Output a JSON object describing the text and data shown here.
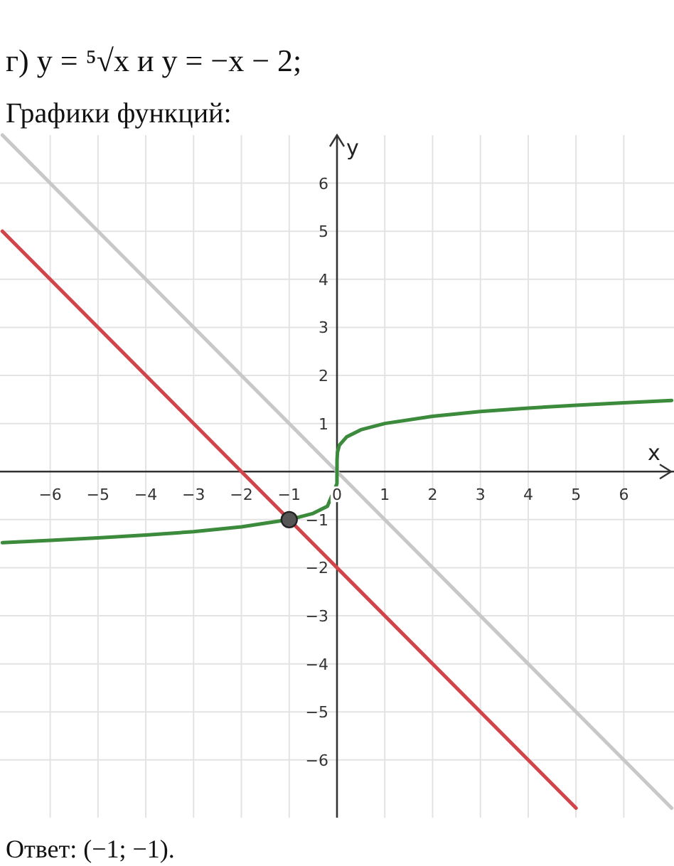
{
  "chart_data": {
    "type": "line",
    "title": "г) y = ⁵√x и y = −x − 2;",
    "subtitle": "Графики функций:",
    "xlabel": "x",
    "ylabel": "y",
    "annotations": [
      "Ответ: (−1; −1)."
    ],
    "xlim": [
      -7.05,
      7.05
    ],
    "ylim": [
      -7.2,
      7.0
    ],
    "xticks": [
      {
        "value": -6,
        "label": "−6"
      },
      {
        "value": -5,
        "label": "−5"
      },
      {
        "value": -4,
        "label": "−4"
      },
      {
        "value": -3,
        "label": "−3"
      },
      {
        "value": -2,
        "label": "−2"
      },
      {
        "value": -1,
        "label": "−1"
      },
      0,
      1,
      2,
      3,
      4,
      5,
      6
    ],
    "yticks": [
      {
        "value": -6,
        "label": "−6"
      },
      {
        "value": -5,
        "label": "−5"
      },
      {
        "value": -4,
        "label": "−4"
      },
      {
        "value": -3,
        "label": "−3"
      },
      {
        "value": -2,
        "label": "−2"
      },
      {
        "value": -1,
        "label": "−1"
      },
      1,
      2,
      3,
      4,
      5,
      6
    ],
    "grid": true,
    "series": [
      {
        "color": "#c8c8c8",
        "x": [
          -7,
          7
        ],
        "values": [
          7,
          -7
        ]
      },
      {
        "color": "#d0444a",
        "x": [
          -7,
          5
        ],
        "values": [
          5,
          -7
        ]
      },
      {
        "color": "#3c8a3c",
        "x": [
          -7,
          -6,
          -5,
          -4,
          -3,
          -2,
          -1,
          -0.5,
          -0.2,
          -0.001,
          0,
          0.001,
          0.01,
          0.05,
          0.2,
          0.5,
          1,
          2,
          3,
          4,
          5,
          6,
          7
        ],
        "values": [
          -1.48,
          -1.43,
          -1.38,
          -1.32,
          -1.25,
          -1.15,
          -1,
          -0.87,
          -0.72,
          -0.25,
          0,
          0.25,
          0.4,
          0.55,
          0.72,
          0.87,
          1,
          1.15,
          1.25,
          1.32,
          1.38,
          1.43,
          1.48
        ]
      },
      {
        "type": "scatter",
        "color": "#555555",
        "marker": "circle",
        "x": [
          -1
        ],
        "values": [
          -1
        ]
      }
    ]
  }
}
